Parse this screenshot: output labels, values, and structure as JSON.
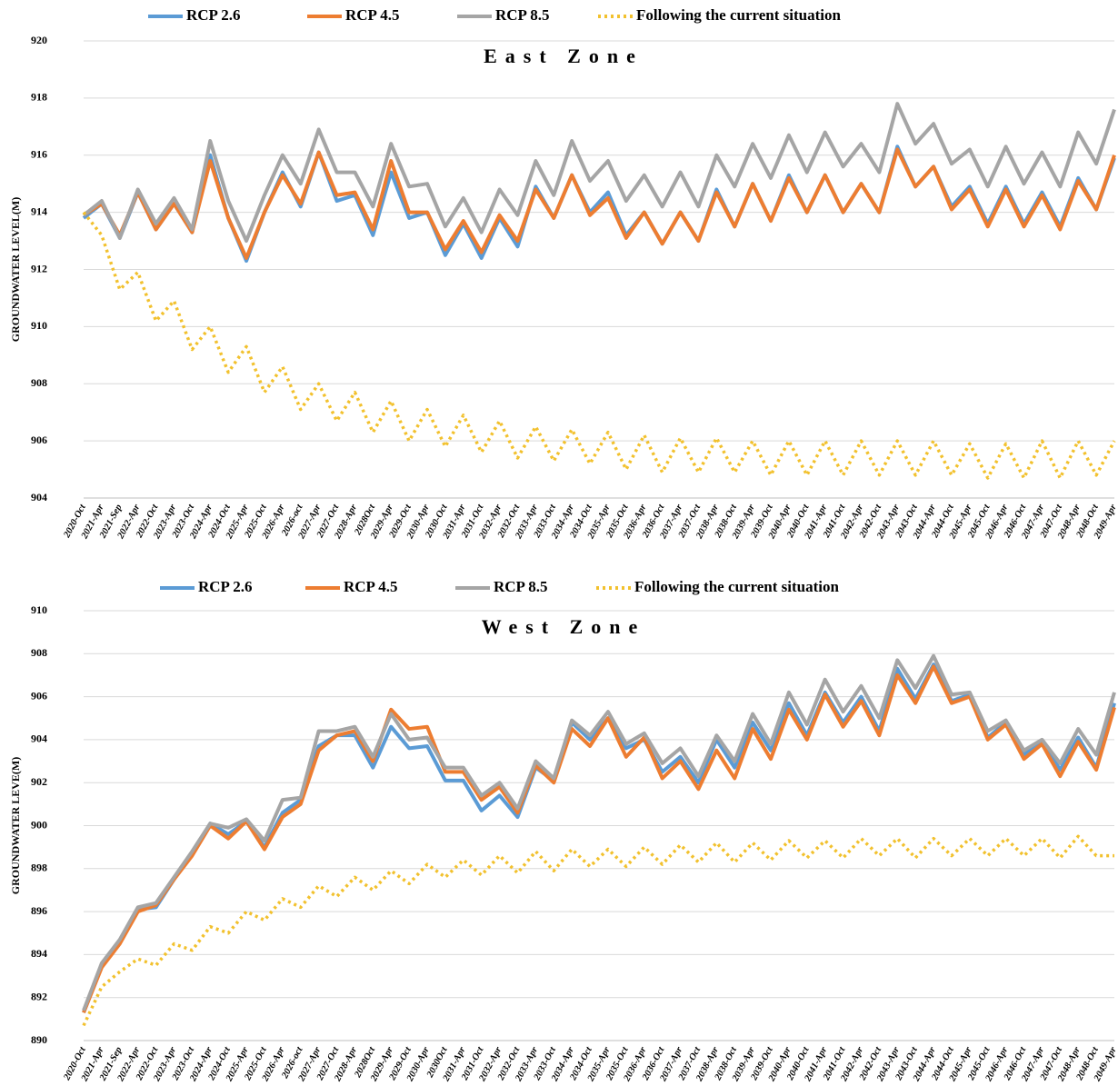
{
  "chart_data": [
    {
      "type": "line",
      "title": "East Zone",
      "ylabel": "GROUNDWATER LEVEL(M)",
      "categories": [
        "2020-Oct",
        "2021-Apr",
        "2021-Sep",
        "2022-Apr",
        "2022-Oct",
        "2023-Apr",
        "2023-Oct",
        "2024-Apr",
        "2024-Oct",
        "2025-Apr",
        "2025-Oct",
        "2026-Apr",
        "2026-oct",
        "2027-Apr",
        "2027-Oct",
        "2028-Apr",
        "2028Oct",
        "2029-Apr",
        "2029-Oct",
        "2030-Apr",
        "2030-Oct",
        "2031-Apr",
        "2031-Oct",
        "2032-Apr",
        "2032-Oct",
        "2033-Apr",
        "2033-Oct",
        "2034-Apr",
        "2034-Oct",
        "2035-Apr",
        "2035-Oct",
        "2036-Apr",
        "2036-Oct",
        "2037-Apr",
        "2037-Oct",
        "2038-Apr",
        "2038-Oct",
        "2039-Apr",
        "2039-Oct",
        "2040-Apr",
        "2040-Oct",
        "2041-Apr",
        "2041-Oct",
        "2042-Apr",
        "2042-Oct",
        "2043-Apr",
        "2043-Oct",
        "2044-Apr",
        "2044-Oct",
        "2045-Apr",
        "2045-Oct",
        "2046-Apr",
        "2046-Oct",
        "2047-Apr",
        "2047-Oct",
        "2048-Apr",
        "2048-Oct",
        "2049-Apr"
      ],
      "series": [
        {
          "name": "RCP 2.6",
          "color": "#5b9bd5",
          "style": "solid",
          "values": [
            913.8,
            914.3,
            913.1,
            914.7,
            913.4,
            914.3,
            913.3,
            916.0,
            913.8,
            912.3,
            914.0,
            915.4,
            914.2,
            916.1,
            914.4,
            914.6,
            913.2,
            915.4,
            913.8,
            914.0,
            912.5,
            913.6,
            912.4,
            913.8,
            912.8,
            914.9,
            913.8,
            915.3,
            914.0,
            914.7,
            913.2,
            914.0,
            912.9,
            914.0,
            913.0,
            914.8,
            913.5,
            915.0,
            913.7,
            915.3,
            914.0,
            915.3,
            914.0,
            915.0,
            914.0,
            916.3,
            914.9,
            915.6,
            914.2,
            914.9,
            913.6,
            914.9,
            913.6,
            914.7,
            913.5,
            915.2,
            914.1,
            915.9
          ]
        },
        {
          "name": "RCP 4.5",
          "color": "#ed7d31",
          "style": "solid",
          "values": [
            913.9,
            914.3,
            913.2,
            914.7,
            913.4,
            914.3,
            913.3,
            915.8,
            913.8,
            912.4,
            914.0,
            915.3,
            914.3,
            916.1,
            914.6,
            914.7,
            913.4,
            915.8,
            914.0,
            914.0,
            912.7,
            913.7,
            912.6,
            913.9,
            913.0,
            914.8,
            913.8,
            915.3,
            913.9,
            914.5,
            913.1,
            914.0,
            912.9,
            914.0,
            913.0,
            914.7,
            913.5,
            915.0,
            913.7,
            915.2,
            914.0,
            915.3,
            914.0,
            915.0,
            914.0,
            916.2,
            914.9,
            915.6,
            914.1,
            914.8,
            913.5,
            914.8,
            913.5,
            914.6,
            913.4,
            915.1,
            914.1,
            916.0
          ]
        },
        {
          "name": "RCP 8.5",
          "color": "#a5a5a5",
          "style": "solid",
          "values": [
            913.9,
            914.4,
            913.1,
            914.8,
            913.6,
            914.5,
            913.4,
            916.5,
            914.4,
            913.0,
            914.6,
            916.0,
            915.0,
            916.9,
            915.4,
            915.4,
            914.2,
            916.4,
            914.9,
            915.0,
            913.5,
            914.5,
            913.3,
            914.8,
            913.9,
            915.8,
            914.6,
            916.5,
            915.1,
            915.8,
            914.4,
            915.3,
            914.2,
            915.4,
            914.2,
            916.0,
            914.9,
            916.4,
            915.2,
            916.7,
            915.4,
            916.8,
            915.6,
            916.4,
            915.4,
            917.8,
            916.4,
            917.1,
            915.7,
            916.2,
            914.9,
            916.3,
            915.0,
            916.1,
            914.9,
            916.8,
            915.7,
            917.6
          ]
        },
        {
          "name": "Following the current situation",
          "color": "#f2c12e",
          "style": "dotted",
          "values": [
            914.0,
            913.2,
            911.3,
            911.9,
            910.2,
            910.9,
            909.2,
            910.0,
            908.4,
            909.3,
            907.7,
            908.6,
            907.1,
            908.0,
            906.7,
            907.7,
            906.3,
            907.4,
            906.0,
            907.1,
            905.8,
            906.9,
            905.6,
            906.7,
            905.4,
            906.5,
            905.3,
            906.4,
            905.2,
            906.3,
            905.0,
            906.2,
            904.9,
            906.1,
            904.9,
            906.1,
            904.9,
            906.0,
            904.8,
            906.0,
            904.8,
            906.0,
            904.8,
            906.0,
            904.8,
            906.0,
            904.8,
            906.0,
            904.8,
            905.9,
            904.7,
            905.9,
            904.7,
            906.0,
            904.7,
            906.0,
            904.8,
            906.0
          ]
        }
      ],
      "ylim": [
        904,
        920
      ],
      "yticks": [
        904,
        906,
        908,
        910,
        912,
        914,
        916,
        918,
        920
      ],
      "grid": true,
      "legend": "top"
    },
    {
      "type": "line",
      "title": "West Zone",
      "ylabel": "GROUNDWATER LEVE(M)",
      "categories": [
        "2020-Oct",
        "2021-Apr",
        "2021-Sep",
        "2022-Apr",
        "2022-Oct",
        "2023-Apr",
        "2023-Oct",
        "2024-Apr",
        "2024-Oct",
        "2025-Apr",
        "2025-Oct",
        "2026-Apr",
        "2026-oct",
        "2027-Apr",
        "2027-Oct",
        "2028-Apr",
        "2028Oct",
        "2029-Apr",
        "2029-Oct",
        "2030-Apr",
        "2030Oct",
        "2031-Apr",
        "2031-Oct",
        "2032-Apr",
        "2032-Oct",
        "2033-Apr",
        "2033-Oct",
        "2034-Apr",
        "2034-Oct",
        "2035-Apr",
        "2035-Oct",
        "2036-Apr",
        "2036-Oct",
        "2037-Apr",
        "2037-Oct",
        "2038-Apr",
        "2038-Oct",
        "2039-Apr",
        "2039-Oct",
        "2040-Apr",
        "2040-Oct",
        "2041-Apr",
        "2041-Oct",
        "2042-Apr",
        "2042-Oct",
        "2043-Apr",
        "2043-Oct",
        "2044-Apr",
        "2044-Oct",
        "2045-Apr",
        "2045-Oct",
        "2046-Apr",
        "2046-Oct",
        "2047-Apr",
        "2047-Oct",
        "2048-Apr",
        "2048-Oct",
        "2049-Apr"
      ],
      "series": [
        {
          "name": "RCP 2.6",
          "color": "#5b9bd5",
          "style": "solid",
          "values": [
            891.3,
            893.5,
            894.6,
            896.1,
            896.2,
            897.5,
            898.7,
            900.1,
            899.6,
            900.2,
            899.0,
            900.6,
            901.2,
            903.7,
            904.2,
            904.2,
            902.7,
            904.6,
            903.6,
            903.7,
            902.1,
            902.1,
            900.7,
            901.4,
            900.4,
            902.7,
            902.1,
            904.8,
            904.0,
            905.0,
            903.6,
            904.0,
            902.5,
            903.2,
            902.0,
            904.0,
            902.7,
            904.8,
            903.5,
            905.7,
            904.2,
            906.2,
            904.8,
            906.0,
            904.4,
            907.3,
            905.9,
            907.5,
            905.8,
            906.1,
            904.1,
            904.8,
            903.3,
            903.9,
            902.6,
            904.1,
            902.7,
            905.7
          ]
        },
        {
          "name": "RCP 4.5",
          "color": "#ed7d31",
          "style": "solid",
          "values": [
            891.3,
            893.4,
            894.5,
            896.0,
            896.3,
            897.5,
            898.6,
            900.0,
            899.4,
            900.2,
            898.9,
            900.4,
            901.0,
            903.5,
            904.2,
            904.4,
            903.0,
            905.4,
            904.5,
            904.6,
            902.5,
            902.5,
            901.2,
            901.8,
            900.6,
            902.8,
            902.0,
            904.5,
            903.7,
            905.0,
            903.2,
            904.1,
            902.2,
            903.0,
            901.7,
            903.5,
            902.2,
            904.5,
            903.1,
            905.4,
            904.0,
            906.1,
            904.6,
            905.8,
            904.2,
            907.0,
            905.7,
            907.4,
            905.7,
            906.0,
            904.0,
            904.7,
            903.1,
            903.8,
            902.3,
            903.9,
            902.6,
            905.5
          ]
        },
        {
          "name": "RCP 8.5",
          "color": "#a5a5a5",
          "style": "solid",
          "values": [
            891.4,
            893.6,
            894.7,
            896.2,
            896.4,
            897.6,
            898.8,
            900.1,
            899.9,
            900.3,
            899.3,
            901.2,
            901.3,
            904.4,
            904.4,
            904.6,
            903.2,
            905.2,
            904.0,
            904.1,
            902.7,
            902.7,
            901.4,
            902.0,
            900.8,
            903.0,
            902.2,
            904.9,
            904.2,
            905.3,
            903.8,
            904.3,
            902.9,
            903.6,
            902.3,
            904.2,
            903.0,
            905.2,
            903.8,
            906.2,
            904.7,
            906.8,
            905.3,
            906.5,
            905.0,
            907.7,
            906.4,
            907.9,
            906.1,
            906.2,
            904.4,
            904.9,
            903.5,
            904.0,
            902.9,
            904.5,
            903.3,
            906.2
          ]
        },
        {
          "name": "Following the current situation",
          "color": "#f2c12e",
          "style": "dotted",
          "values": [
            890.7,
            892.5,
            893.2,
            893.8,
            893.5,
            894.5,
            894.2,
            895.3,
            895.0,
            896.0,
            895.6,
            896.6,
            896.2,
            897.2,
            896.7,
            897.6,
            897.0,
            897.9,
            897.3,
            898.2,
            897.6,
            898.4,
            897.7,
            898.6,
            897.8,
            898.8,
            897.9,
            898.9,
            898.1,
            898.9,
            898.1,
            899.0,
            898.2,
            899.1,
            898.3,
            899.2,
            898.3,
            899.2,
            898.4,
            899.3,
            898.5,
            899.3,
            898.5,
            899.4,
            898.6,
            899.4,
            898.5,
            899.4,
            898.6,
            899.4,
            898.6,
            899.4,
            898.6,
            899.4,
            898.5,
            899.5,
            898.6,
            898.6
          ]
        }
      ],
      "ylim": [
        890,
        910
      ],
      "yticks": [
        890,
        892,
        894,
        896,
        898,
        900,
        902,
        904,
        906,
        908,
        910
      ],
      "grid": true,
      "legend": "top"
    }
  ]
}
